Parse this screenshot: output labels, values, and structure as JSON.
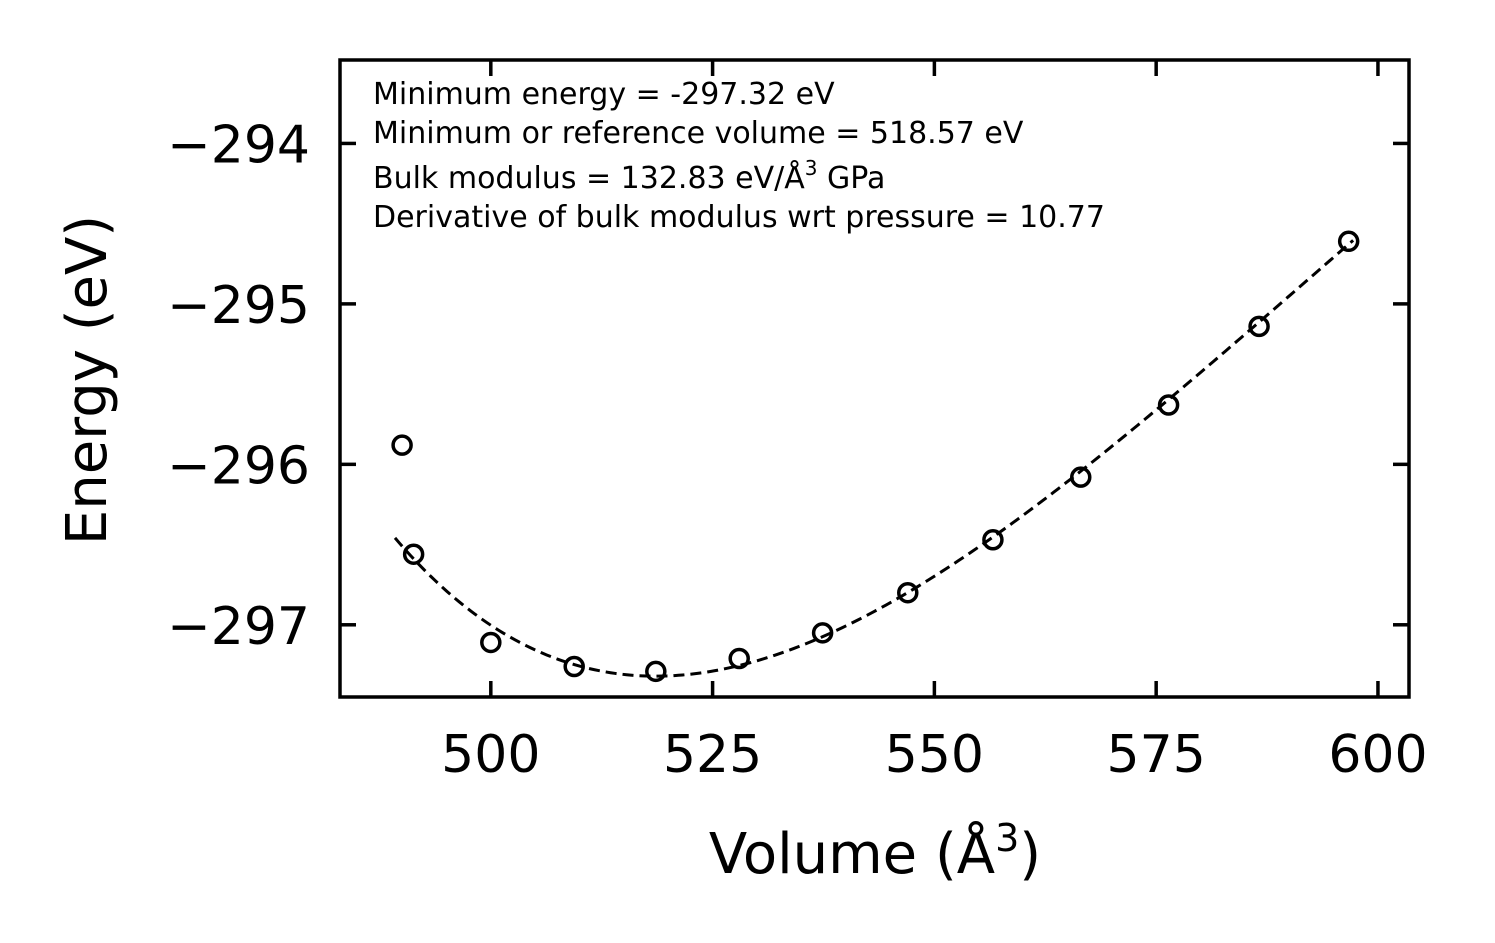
{
  "chart_data": {
    "type": "scatter",
    "xlabel": "Volume (Å",
    "xlabel_sup": "3",
    "xlabel_close": ")",
    "ylabel": "Energy (eV)",
    "xlim": [
      483,
      603.5
    ],
    "ylim": [
      -297.45,
      -293.48
    ],
    "xticks": [
      500,
      525,
      550,
      575,
      600
    ],
    "xtick_labels": [
      "500",
      "525",
      "550",
      "575",
      "600"
    ],
    "yticks": [
      -294,
      -295,
      -296,
      -297
    ],
    "ytick_labels": [
      "−294",
      "−295",
      "−296",
      "−297"
    ],
    "grid": false,
    "annotations": [
      {
        "text": "Minimum energy = -297.32 eV"
      },
      {
        "text": "Minimum or reference volume = 518.57 eV"
      },
      {
        "text": "Bulk modulus = 132.83 eV/Å",
        "sup": "3",
        "suffix": " GPa"
      },
      {
        "text": "Derivative of bulk modulus wrt pressure = 10.77"
      }
    ],
    "series": [
      {
        "name": "data",
        "marker": "open-circle",
        "x": [
          490.0,
          491.3,
          500.0,
          509.4,
          518.6,
          528.0,
          537.4,
          547.0,
          556.6,
          566.5,
          576.4,
          586.6,
          596.7
        ],
        "y": [
          -295.88,
          -296.56,
          -297.11,
          -297.26,
          -297.29,
          -297.21,
          -297.05,
          -296.8,
          -296.47,
          -296.08,
          -295.63,
          -295.14,
          -294.61
        ]
      },
      {
        "name": "fit",
        "style": "dashed",
        "eos": {
          "E0": -297.32,
          "V0": 518.57,
          "B0": 132.83,
          "B0_prime": 10.77
        },
        "x_range": [
          489.2,
          597.2
        ]
      }
    ]
  }
}
